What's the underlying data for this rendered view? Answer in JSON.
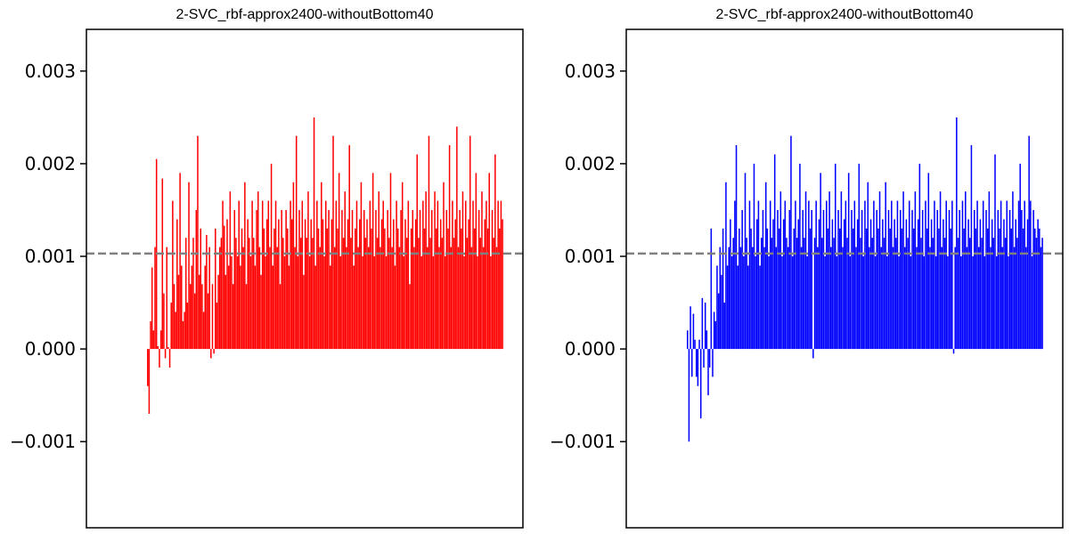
{
  "chart_data": [
    {
      "type": "bar",
      "title": "2-SVC_rbf-approx2400-withoutBottom40",
      "xlabel": "",
      "ylabel": "",
      "ylim": [
        -0.00193,
        0.00345
      ],
      "yticks": [
        -0.001,
        0.0,
        0.001,
        0.002,
        0.003
      ],
      "ytick_labels": [
        "−0.001",
        "0.000",
        "0.001",
        "0.002",
        "0.003"
      ],
      "x_ticks_visible": false,
      "grid": false,
      "legend": "none",
      "bar_color": "#ff0000",
      "reference_line": {
        "y": 0.00103,
        "style": "dashed",
        "color": "#808080"
      },
      "bar_count": 240,
      "values": [
        -0.0004,
        -0.0007,
        0.0003,
        0.00088,
        0.0002,
        0.0011,
        0.00205,
        3e-05,
        -0.0002,
        0.0002,
        0.00184,
        0.0006,
        -0.0001,
        0.0011,
        2e-05,
        -0.0002,
        0.0005,
        0.0016,
        0.0007,
        0.0004,
        0.0014,
        0.0008,
        0.0019,
        0.0009,
        0.0003,
        0.0004,
        0.0012,
        0.0005,
        0.0018,
        0.0007,
        0.0009,
        0.0012,
        0.0006,
        0.0015,
        0.0023,
        0.0008,
        0.0013,
        0.0007,
        0.0004,
        0.0009,
        0.00123,
        0.0006,
        0.0011,
        -0.0001,
        0.0007,
        -5e-05,
        0.0013,
        0.0005,
        0.0008,
        0.0011,
        0.0012,
        0.0016,
        0.00133,
        0.0008,
        0.0014,
        0.0009,
        0.0017,
        0.001,
        0.0007,
        0.0015,
        0.0012,
        0.001,
        0.0016,
        0.0009,
        0.0013,
        0.0011,
        0.0018,
        0.0007,
        0.0014,
        0.0012,
        0.001,
        0.0016,
        0.0012,
        0.0009,
        0.0015,
        0.0017,
        0.0011,
        0.0008,
        0.0016,
        0.0013,
        0.001,
        0.0014,
        0.0016,
        0.0011,
        0.002,
        0.0009,
        0.0013,
        0.0016,
        0.0011,
        0.0014,
        0.0007,
        0.0015,
        0.0012,
        0.001,
        0.0015,
        0.0013,
        0.0009,
        0.0016,
        0.0014,
        0.0018,
        0.0011,
        0.0023,
        0.001,
        0.0015,
        0.0012,
        0.0016,
        0.0008,
        0.0014,
        0.0012,
        0.0017,
        0.001,
        0.0014,
        0.0012,
        0.0025,
        0.0009,
        0.0016,
        0.0013,
        0.0011,
        0.0018,
        0.0014,
        0.001,
        0.0016,
        0.0013,
        0.0015,
        0.0009,
        0.0014,
        0.0023,
        0.0011,
        0.0016,
        0.0013,
        0.0019,
        0.001,
        0.0015,
        0.0012,
        0.0017,
        0.0011,
        0.0014,
        0.0022,
        0.0012,
        0.0015,
        0.0009,
        0.0013,
        0.0016,
        0.0011,
        0.0014,
        0.0018,
        0.001,
        0.0015,
        0.0012,
        0.0014,
        0.0011,
        0.0016,
        0.0013,
        0.0019,
        0.001,
        0.0015,
        0.0012,
        0.0017,
        0.0011,
        0.0014,
        0.0016,
        0.0013,
        0.001,
        0.0015,
        0.0012,
        0.0019,
        0.0011,
        0.0014,
        0.0009,
        0.0016,
        0.0013,
        0.0011,
        0.0015,
        0.0018,
        0.001,
        0.0014,
        0.0012,
        0.0016,
        0.0007,
        0.0013,
        0.0015,
        0.0011,
        0.0014,
        0.0021,
        0.0012,
        0.0015,
        0.001,
        0.0016,
        0.0013,
        0.0017,
        0.0011,
        0.0023,
        0.0012,
        0.0015,
        0.001,
        0.0017,
        0.0013,
        0.0016,
        0.0011,
        0.0014,
        0.0012,
        0.0018,
        0.001,
        0.0015,
        0.0013,
        0.0022,
        0.0011,
        0.0016,
        0.0012,
        0.0014,
        0.0024,
        0.0011,
        0.0015,
        0.0013,
        0.0017,
        0.001,
        0.0016,
        0.0012,
        0.0014,
        0.0023,
        0.0011,
        0.0016,
        0.0013,
        0.0019,
        0.001,
        0.0015,
        0.0012,
        0.0017,
        0.0011,
        0.0014,
        0.0016,
        0.0013,
        0.0019,
        0.001,
        0.0015,
        0.0012,
        0.0021,
        0.0011,
        0.0016,
        0.0013,
        0.0016,
        0.0014
      ]
    },
    {
      "type": "bar",
      "title": "2-SVC_rbf-approx2400-withoutBottom40",
      "xlabel": "",
      "ylabel": "",
      "ylim": [
        -0.00193,
        0.00345
      ],
      "yticks": [
        -0.001,
        0.0,
        0.001,
        0.002,
        0.003
      ],
      "ytick_labels": [
        "−0.001",
        "0.000",
        "0.001",
        "0.002",
        "0.003"
      ],
      "x_ticks_visible": false,
      "grid": false,
      "legend": "none",
      "bar_color": "#0000ff",
      "reference_line": {
        "y": 0.00103,
        "style": "dashed",
        "color": "#808080"
      },
      "bar_count": 240,
      "values": [
        0.0002,
        -0.001,
        0.00046,
        -0.0003,
        0.00038,
        0.0001,
        -0.0003,
        -0.0004,
        0.0001,
        -0.00075,
        0.00055,
        -0.0002,
        0.0005,
        0.0002,
        -0.0005,
        -0.0002,
        0.0013,
        -0.0003,
        0.0004,
        0.0003,
        0.0009,
        0.0006,
        0.0011,
        0.0008,
        0.0013,
        0.0005,
        0.0018,
        0.0009,
        0.0011,
        0.0014,
        0.001,
        0.0012,
        0.0016,
        0.0022,
        0.0009,
        0.0013,
        0.0011,
        0.0015,
        0.001,
        0.0019,
        0.0012,
        0.0009,
        0.0016,
        0.0013,
        0.0011,
        0.002,
        0.001,
        0.0014,
        0.0016,
        0.0009,
        0.0012,
        0.0015,
        0.0011,
        0.0018,
        0.0013,
        0.001,
        0.0016,
        0.0012,
        0.0014,
        0.0021,
        0.0011,
        0.0015,
        0.0013,
        0.0017,
        0.001,
        0.0014,
        0.0016,
        0.0012,
        0.0011,
        0.0015,
        0.0023,
        0.001,
        0.0013,
        0.0016,
        0.0012,
        0.0014,
        0.002,
        0.0011,
        0.0015,
        0.0012,
        0.0017,
        0.001,
        0.0016,
        0.0013,
        0.0015,
        -0.0001,
        0.0012,
        0.0016,
        0.0011,
        0.0014,
        0.0019,
        0.0012,
        0.0015,
        0.001,
        0.0016,
        0.0013,
        0.0017,
        0.0011,
        0.0014,
        0.0012,
        0.002,
        0.001,
        0.0015,
        0.0013,
        0.0017,
        0.0011,
        0.0014,
        0.0016,
        0.0012,
        0.0019,
        0.001,
        0.0015,
        0.0013,
        0.0016,
        0.0011,
        0.0014,
        0.002,
        0.0012,
        0.0015,
        0.001,
        0.0016,
        0.0013,
        0.0018,
        0.0011,
        0.0014,
        0.0012,
        0.0016,
        0.001,
        0.0015,
        0.0013,
        0.0017,
        0.0011,
        0.0014,
        0.0012,
        0.0018,
        0.001,
        0.0015,
        0.0013,
        0.0016,
        0.0011,
        0.0014,
        0.0012,
        0.0016,
        0.001,
        0.0015,
        0.0013,
        0.0017,
        0.0011,
        0.0014,
        0.0012,
        0.0016,
        0.001,
        0.0015,
        0.0013,
        0.0017,
        0.0011,
        0.0014,
        0.002,
        0.0012,
        0.0015,
        0.001,
        0.0016,
        0.0013,
        0.0019,
        0.0011,
        0.0014,
        0.0012,
        0.0016,
        0.001,
        0.0015,
        0.0013,
        0.0017,
        0.0011,
        0.0014,
        0.0012,
        0.0016,
        0.001,
        0.0015,
        0.0013,
        0.0016,
        -5e-05,
        0.0011,
        0.0025,
        0.0012,
        0.0015,
        0.001,
        0.0016,
        0.0013,
        0.0017,
        0.0011,
        0.0014,
        0.0012,
        0.0022,
        0.001,
        0.0015,
        0.0013,
        0.0016,
        0.0011,
        0.0014,
        0.0012,
        0.0016,
        0.001,
        0.0015,
        0.0013,
        0.0017,
        0.0011,
        0.0014,
        0.0012,
        0.0021,
        0.001,
        0.0015,
        0.0013,
        0.0016,
        0.0011,
        0.0014,
        0.0012,
        0.0016,
        0.001,
        0.0015,
        0.0013,
        0.0017,
        0.0011,
        0.0014,
        0.0012,
        0.0016,
        0.002,
        0.0015,
        0.0013,
        0.0016,
        0.0011,
        0.0014,
        0.0023,
        0.0016,
        0.001,
        0.0015,
        0.0013,
        0.0012,
        0.0014,
        0.0013,
        0.0011,
        0.0012
      ]
    }
  ]
}
